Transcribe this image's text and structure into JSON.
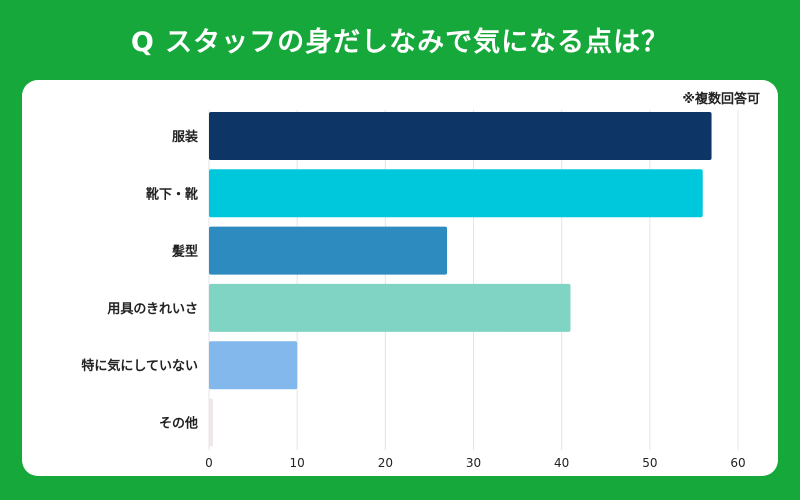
{
  "title": "Q スタッフの身だしなみで気になる点は？",
  "note": "※複数回答可",
  "chart_data": {
    "type": "bar",
    "orientation": "horizontal",
    "categories": [
      "服装",
      "靴下・靴",
      "髪型",
      "用具のきれいさ",
      "特に気にしていない",
      "その他"
    ],
    "values": [
      57,
      56,
      27,
      41,
      10,
      0
    ],
    "colors": [
      "#0d3566",
      "#00c8dc",
      "#2e8bbf",
      "#7fd4c4",
      "#82b8ec",
      "#f2e6e6"
    ],
    "xlim": [
      0,
      60
    ],
    "xticks": [
      0,
      10,
      20,
      30,
      40,
      50,
      60
    ],
    "grid": true
  }
}
